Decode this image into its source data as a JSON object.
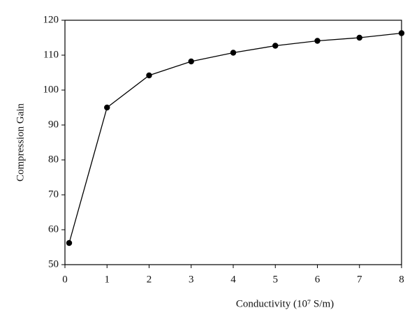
{
  "chart_data": {
    "type": "line",
    "x_label": "Conductivity (10⁷ S/m)",
    "y_label": "Compression Gain",
    "x": [
      0.1,
      1,
      2,
      3,
      4,
      5,
      6,
      7,
      8
    ],
    "series": [
      {
        "color": "#000000",
        "values": [
          56.2,
          95,
          104.2,
          108.2,
          110.7,
          112.7,
          114.1,
          115,
          116.3
        ]
      }
    ],
    "xlim": [
      0,
      8
    ],
    "xticks": [
      0,
      1,
      2,
      3,
      4,
      5,
      6,
      7,
      8
    ],
    "ylim": [
      50,
      120
    ],
    "yticks": [
      50,
      60,
      70,
      80,
      90,
      100,
      110,
      120
    ]
  }
}
